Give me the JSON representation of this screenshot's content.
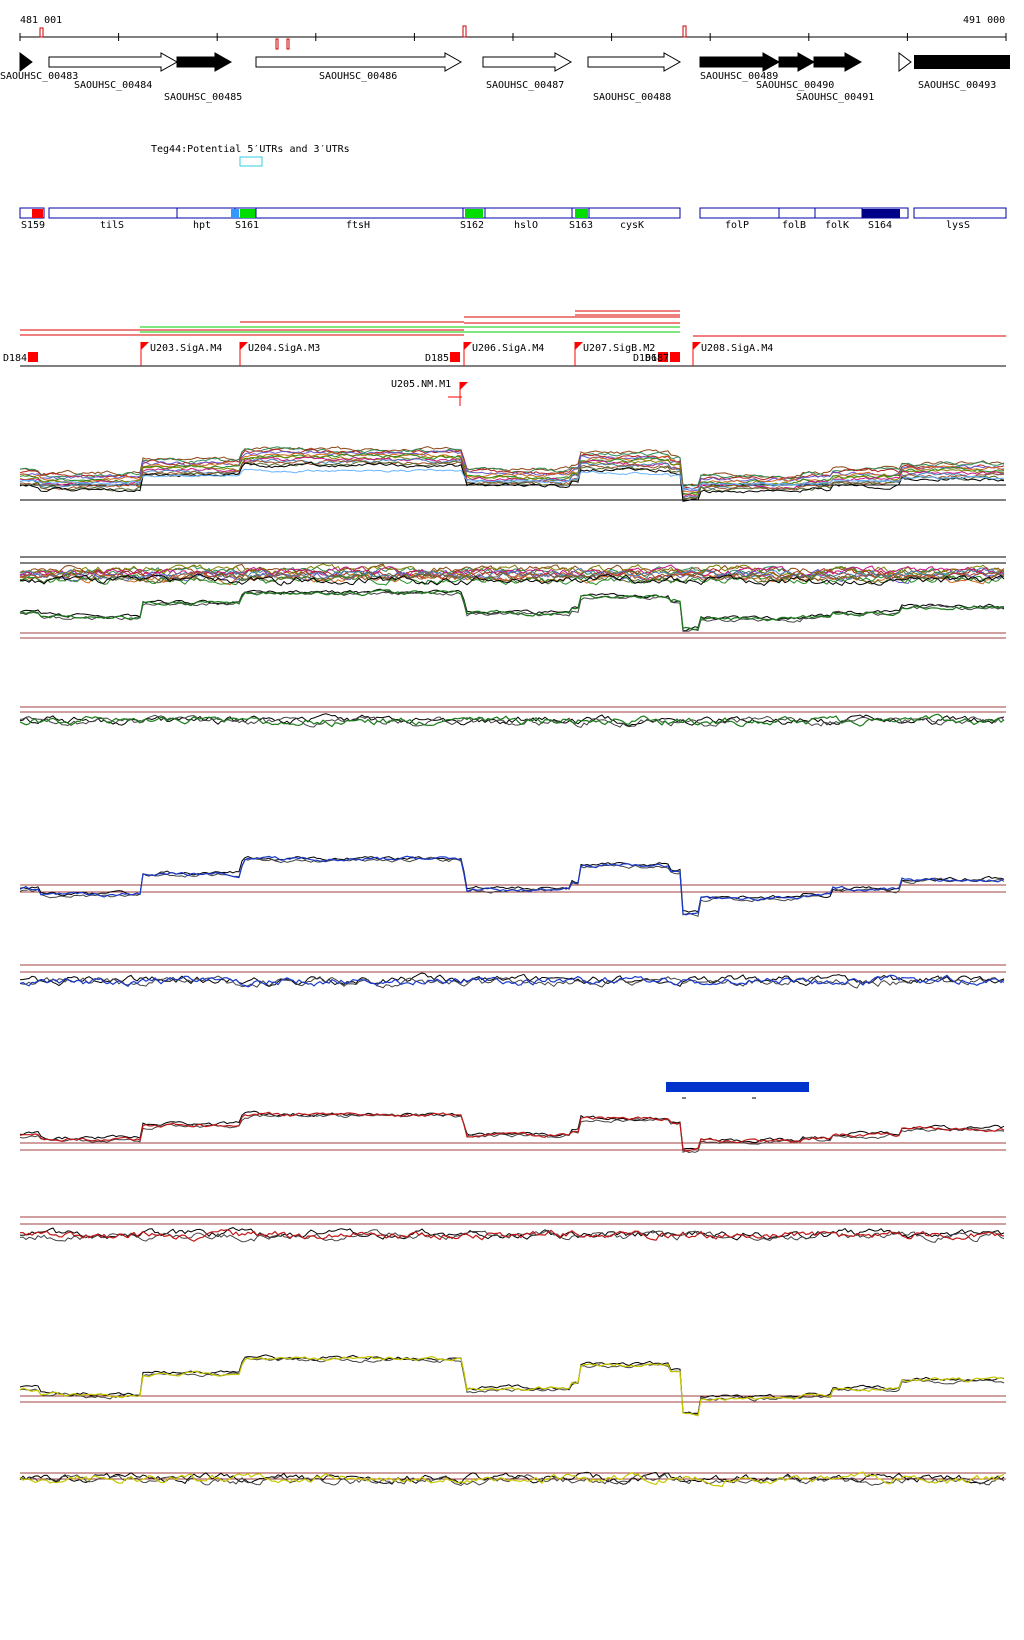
{
  "coords": {
    "start": "481 001",
    "end": "491 000"
  },
  "genes": [
    {
      "label": "SAOUHSC_00483",
      "filled": true,
      "strand": "+"
    },
    {
      "label": "SAOUHSC_00484",
      "filled": false,
      "strand": "+"
    },
    {
      "label": "SAOUHSC_00485",
      "filled": true,
      "strand": "+"
    },
    {
      "label": "SAOUHSC_00486",
      "filled": false,
      "strand": "+"
    },
    {
      "label": "SAOUHSC_00487",
      "filled": false,
      "strand": "+"
    },
    {
      "label": "SAOUHSC_00488",
      "filled": false,
      "strand": "+"
    },
    {
      "label": "SAOUHSC_00489",
      "filled": true,
      "strand": "+"
    },
    {
      "label": "SAOUHSC_00490",
      "filled": true,
      "strand": "+"
    },
    {
      "label": "SAOUHSC_00491",
      "filled": true,
      "strand": "+"
    },
    {
      "label": "SAOUHSC_00493",
      "filled": true,
      "strand": "+"
    }
  ],
  "teg": {
    "label": "Teg44:Potential 5′UTRs and 3′UTRs"
  },
  "segments": [
    {
      "label": "S159",
      "color": "#ff0000"
    },
    {
      "label": "tilS",
      "color": null
    },
    {
      "label": "hpt",
      "color": null
    },
    {
      "label": "S161",
      "color": "#00dd00"
    },
    {
      "label": "ftsH",
      "color": null
    },
    {
      "label": "S162",
      "color": "#00dd00"
    },
    {
      "label": "hslO",
      "color": null
    },
    {
      "label": "S163",
      "color": "#00dd00"
    },
    {
      "label": "cysK",
      "color": null
    },
    {
      "label": "folP",
      "color": null
    },
    {
      "label": "folB",
      "color": null
    },
    {
      "label": "folK",
      "color": null
    },
    {
      "label": "S164",
      "color": "#000088"
    },
    {
      "label": "lysS",
      "color": null
    }
  ],
  "sites": [
    {
      "label": "D184",
      "kind": "down"
    },
    {
      "label": "U203.SigA.M4",
      "kind": "up"
    },
    {
      "label": "U204.SigA.M3",
      "kind": "up"
    },
    {
      "label": "D185",
      "kind": "down"
    },
    {
      "label": "U206.SigA.M4",
      "kind": "up"
    },
    {
      "label": "U207.SigB.M2",
      "kind": "up"
    },
    {
      "label": "D186",
      "kind": "down"
    },
    {
      "label": "D187",
      "kind": "down"
    },
    {
      "label": "U208.SigA.M4",
      "kind": "up"
    },
    {
      "label": "U205.NM.M1",
      "kind": "up"
    }
  ],
  "colors": {
    "track_green": "#1a7a1a",
    "track_blue": "#1a3acc",
    "track_red": "#c01818",
    "track_yellow": "#c8c800",
    "baseline": "#a04040",
    "gene_outline": "#0000aa",
    "site_marker": "#ff0000"
  }
}
